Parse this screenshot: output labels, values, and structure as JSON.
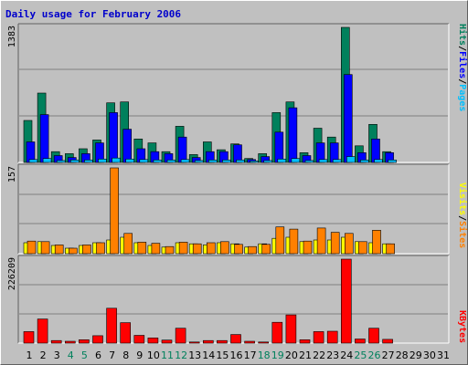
{
  "title": "Daily usage for February 2006",
  "colors": {
    "title": "#0000cc",
    "hits": "#00805c",
    "files": "#0000ff",
    "pages": "#00c0ff",
    "visits": "#ffff00",
    "sites": "#ff8000",
    "kbytes": "#ff0000",
    "weekday_label": "#000000",
    "weekend_label": "#00805c"
  },
  "chart_data": [
    {
      "type": "bar",
      "panel": "hits-files-pages",
      "ymax_label": "1383",
      "ylim": [
        0,
        1383
      ],
      "legend": [
        "Pages",
        "/",
        "Files",
        "/",
        "Hits"
      ],
      "series": [
        {
          "name": "Hits",
          "values": [
            430,
            710,
            110,
            90,
            140,
            230,
            610,
            620,
            240,
            200,
            110,
            370,
            80,
            210,
            130,
            190,
            40,
            90,
            510,
            620,
            100,
            350,
            260,
            1383,
            170,
            390,
            110,
            0
          ]
        },
        {
          "name": "Files",
          "values": [
            210,
            490,
            70,
            50,
            90,
            200,
            510,
            340,
            140,
            110,
            90,
            260,
            50,
            110,
            110,
            180,
            30,
            60,
            310,
            560,
            70,
            200,
            200,
            900,
            100,
            240,
            100,
            0
          ]
        },
        {
          "name": "Pages",
          "values": [
            30,
            40,
            20,
            25,
            25,
            35,
            45,
            35,
            30,
            25,
            25,
            30,
            20,
            25,
            25,
            25,
            15,
            20,
            35,
            40,
            20,
            30,
            30,
            60,
            25,
            30,
            25,
            0
          ]
        }
      ]
    },
    {
      "type": "bar",
      "panel": "visits-sites",
      "ymax_label": "157",
      "ylim": [
        0,
        157
      ],
      "legend": [
        "Sites",
        "/",
        "Visits"
      ],
      "series": [
        {
          "name": "Visits",
          "values": [
            20,
            22,
            15,
            10,
            15,
            20,
            25,
            30,
            20,
            15,
            12,
            20,
            18,
            16,
            20,
            18,
            12,
            18,
            28,
            30,
            22,
            25,
            25,
            30,
            22,
            20,
            18,
            0
          ]
        },
        {
          "name": "Sites",
          "values": [
            23,
            22,
            16,
            10,
            16,
            20,
            157,
            37,
            21,
            19,
            13,
            21,
            18,
            20,
            22,
            17,
            13,
            17,
            49,
            45,
            23,
            47,
            39,
            37,
            22,
            43,
            18,
            0
          ]
        }
      ]
    },
    {
      "type": "bar",
      "panel": "kbytes",
      "ymax_label": "226209",
      "ylim": [
        0,
        226209
      ],
      "legend": [
        "KBytes"
      ],
      "series": [
        {
          "name": "KBytes",
          "values": [
            31000,
            65000,
            7000,
            5000,
            9000,
            20000,
            94000,
            55000,
            21000,
            14000,
            8000,
            40000,
            3000,
            7000,
            7000,
            23000,
            5000,
            3000,
            56000,
            76000,
            9000,
            31000,
            32000,
            226209,
            11000,
            40000,
            10000,
            0
          ]
        }
      ]
    }
  ],
  "days": [
    "1",
    "2",
    "3",
    "4",
    "5",
    "6",
    "7",
    "8",
    "9",
    "10",
    "11",
    "12",
    "13",
    "14",
    "15",
    "16",
    "17",
    "18",
    "19",
    "20",
    "21",
    "22",
    "23",
    "24",
    "25",
    "26",
    "27",
    "28",
    "29",
    "30",
    "31"
  ],
  "weekend_days": [
    "4",
    "5",
    "11",
    "12",
    "18",
    "19",
    "25",
    "26"
  ]
}
